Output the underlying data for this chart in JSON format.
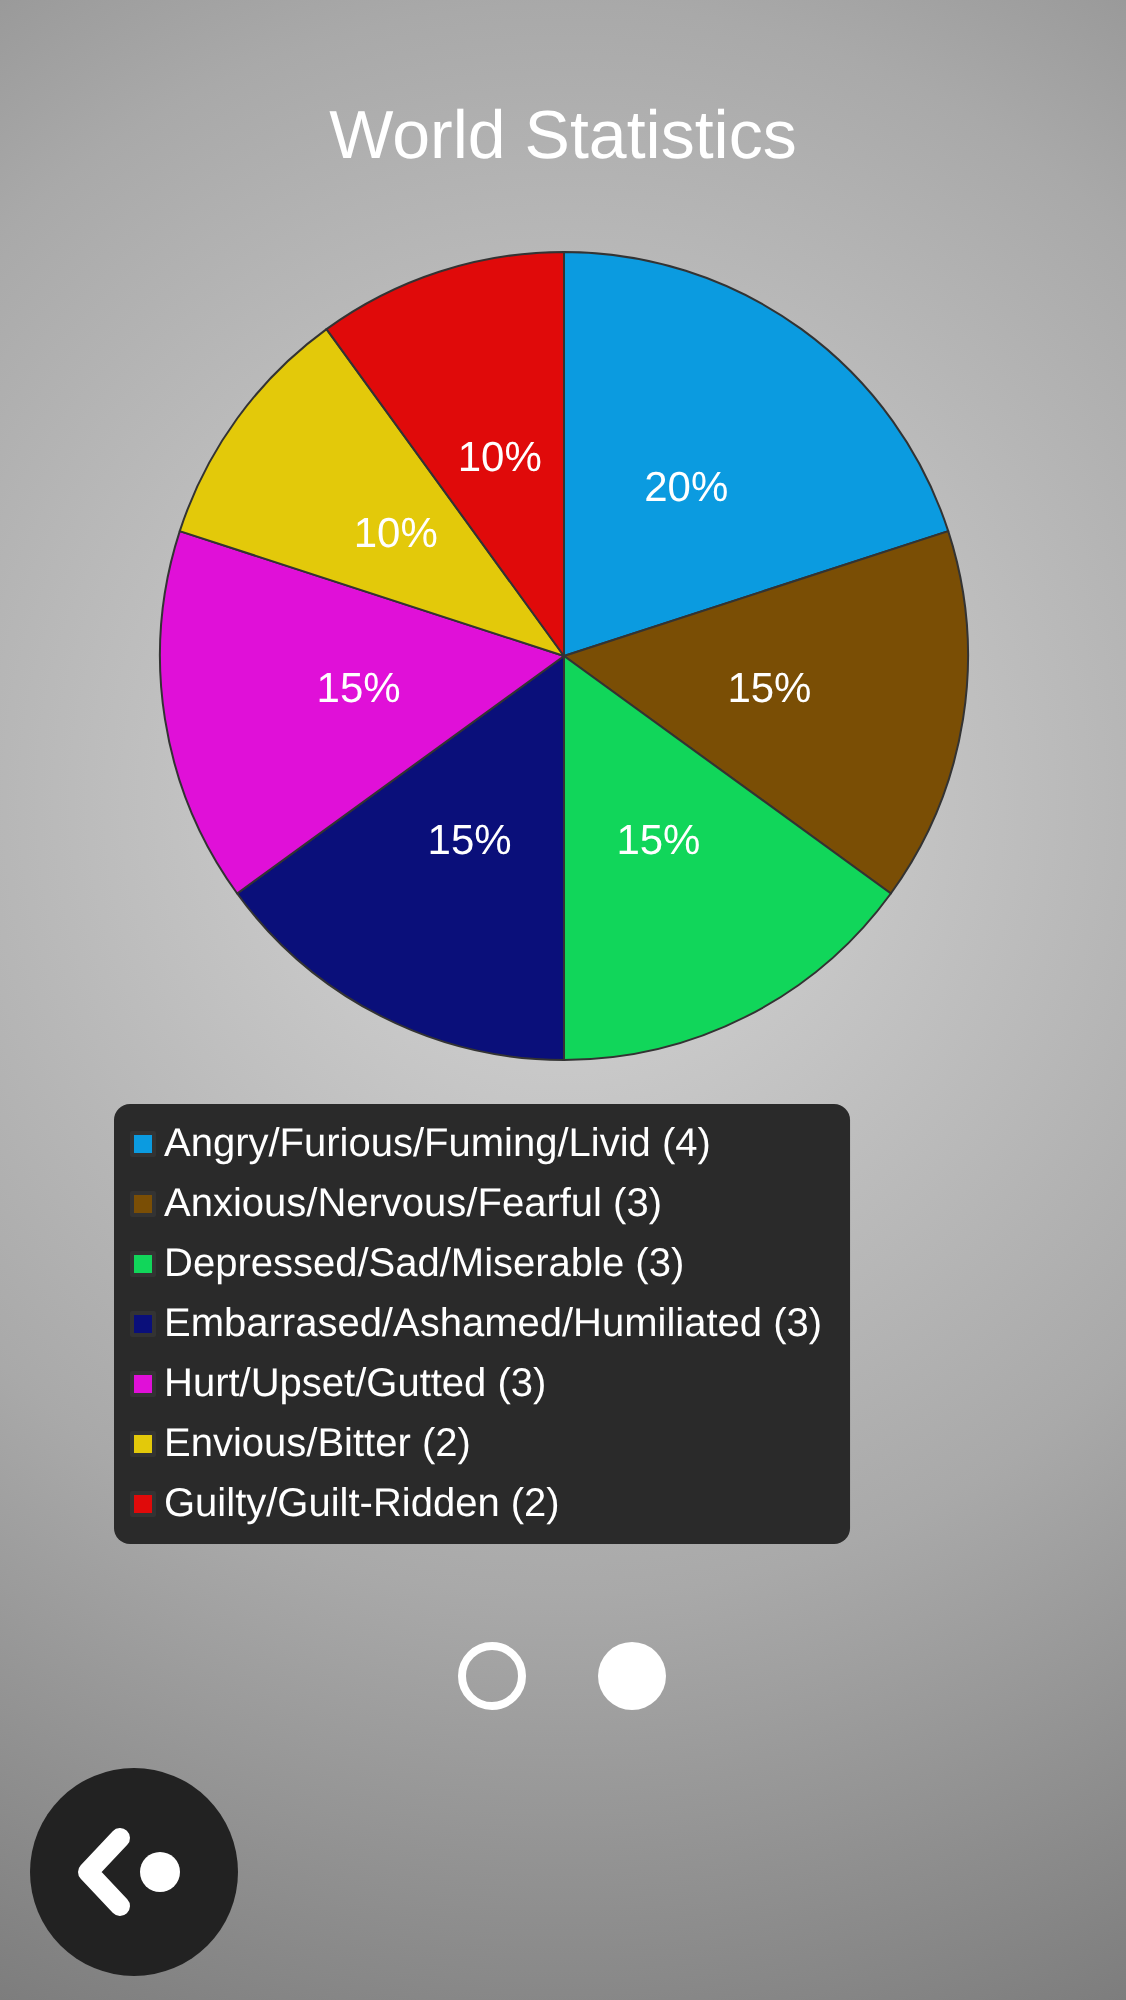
{
  "chart_data": {
    "type": "pie",
    "title": "World Statistics",
    "categories": [
      "Angry/Furious/Fuming/Livid (4)",
      "Anxious/Nervous/Fearful (3)",
      "Depressed/Sad/Miserable (3)",
      "Embarrased/Ashamed/Humiliated (3)",
      "Hurt/Upset/Gutted (3)",
      "Envious/Bitter (2)",
      "Guilty/Guilt-Ridden (2)"
    ],
    "values": [
      20,
      15,
      15,
      15,
      15,
      10,
      10
    ],
    "value_labels": [
      "20%",
      "15%",
      "15%",
      "15%",
      "15%",
      "10%",
      "10%"
    ],
    "colors": [
      "#0b9be0",
      "#7a4e05",
      "#11d65a",
      "#0a0f7a",
      "#e010d8",
      "#e3c90a",
      "#e00a0a"
    ],
    "legend": "bottom"
  }
}
